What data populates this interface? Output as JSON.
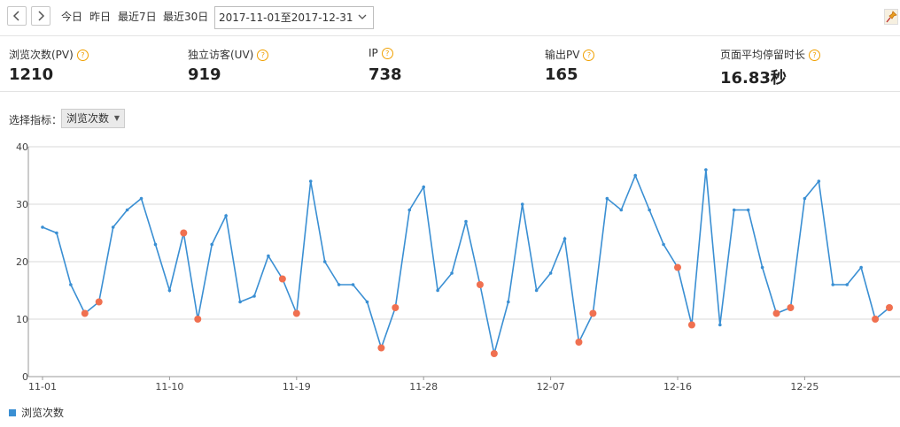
{
  "toolbar": {
    "prev_icon": "chevron-left-icon",
    "next_icon": "chevron-right-icon",
    "quick_links": [
      "今日",
      "昨日",
      "最近7日",
      "最近30日"
    ],
    "date_range": "2017-11-01至2017-12-31",
    "pin_icon": "pin-icon"
  },
  "stats": [
    {
      "label": "浏览次数(PV)",
      "value": "1210"
    },
    {
      "label": "独立访客(UV)",
      "value": "919"
    },
    {
      "label": "IP",
      "value": "738"
    },
    {
      "label": "输出PV",
      "value": "165"
    },
    {
      "label": "页面平均停留时长",
      "value": "16.83秒"
    }
  ],
  "help_glyph": "?",
  "indicator": {
    "label": "选择指标：",
    "selected": "浏览次数"
  },
  "colors": {
    "line": "#3a8fd3",
    "highlight": "#f07050",
    "grid": "#d8d8d8"
  },
  "chart_data": {
    "type": "line",
    "ylim": [
      0,
      40
    ],
    "yticks": [
      0,
      10,
      20,
      30,
      40
    ],
    "x_tick_labels": [
      "11-01",
      "11-10",
      "11-19",
      "11-28",
      "12-07",
      "12-16",
      "12-25"
    ],
    "x_tick_indices": [
      0,
      9,
      18,
      27,
      36,
      45,
      54
    ],
    "series": [
      {
        "name": "浏览次数",
        "values": [
          26,
          25,
          16,
          11,
          13,
          26,
          29,
          31,
          23,
          15,
          25,
          10,
          23,
          28,
          13,
          14,
          21,
          17,
          11,
          34,
          20,
          16,
          16,
          13,
          5,
          12,
          29,
          33,
          15,
          18,
          27,
          16,
          4,
          13,
          30,
          15,
          18,
          24,
          6,
          11,
          31,
          29,
          35,
          29,
          23,
          19,
          9,
          36,
          9,
          29,
          29,
          19,
          11,
          12,
          31,
          34,
          16,
          16,
          19,
          10,
          12
        ],
        "highlighted_indices": [
          3,
          4,
          10,
          11,
          17,
          18,
          24,
          25,
          31,
          32,
          38,
          39,
          45,
          46,
          52,
          53,
          59,
          60
        ]
      }
    ]
  }
}
